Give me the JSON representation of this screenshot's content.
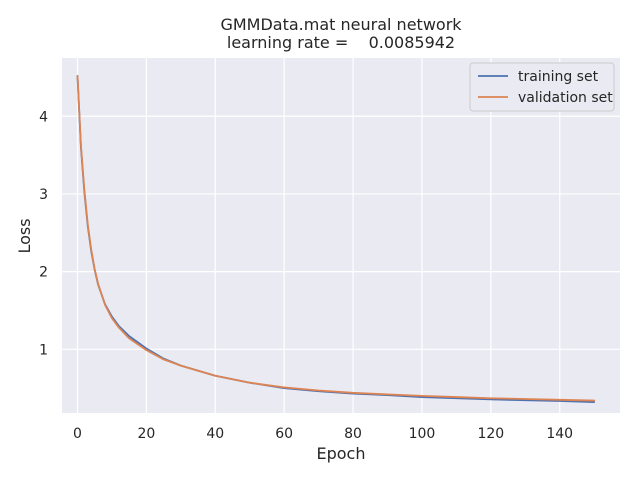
{
  "chart_data": {
    "type": "line",
    "title": "GMMData.mat neural network",
    "subtitle": "learning rate =    0.0085942",
    "xlabel": "Epoch",
    "ylabel": "Loss",
    "xlim": [
      -4.5,
      157.5
    ],
    "ylim": [
      0.18,
      4.75
    ],
    "xticks": [
      0,
      20,
      40,
      60,
      80,
      100,
      120,
      140
    ],
    "yticks": [
      1,
      2,
      3,
      4
    ],
    "grid": true,
    "legend": "top-right",
    "series": [
      {
        "name": "training set",
        "color": "#4c72b0",
        "x": [
          0,
          1,
          2,
          3,
          4,
          5,
          6,
          8,
          10,
          12,
          15,
          20,
          25,
          30,
          40,
          50,
          60,
          70,
          80,
          90,
          100,
          110,
          120,
          130,
          140,
          150
        ],
        "y": [
          4.52,
          3.6,
          3.02,
          2.58,
          2.26,
          2.02,
          1.83,
          1.58,
          1.42,
          1.3,
          1.17,
          1.01,
          0.88,
          0.79,
          0.66,
          0.57,
          0.5,
          0.46,
          0.43,
          0.41,
          0.385,
          0.37,
          0.355,
          0.345,
          0.335,
          0.32
        ]
      },
      {
        "name": "validation set",
        "color": "#dd8452",
        "x": [
          0,
          1,
          2,
          3,
          4,
          5,
          6,
          8,
          10,
          12,
          15,
          20,
          25,
          30,
          40,
          50,
          60,
          70,
          80,
          90,
          100,
          110,
          120,
          130,
          140,
          150
        ],
        "y": [
          4.52,
          3.62,
          3.05,
          2.6,
          2.28,
          2.03,
          1.84,
          1.57,
          1.4,
          1.28,
          1.14,
          0.99,
          0.87,
          0.79,
          0.66,
          0.57,
          0.51,
          0.47,
          0.44,
          0.42,
          0.4,
          0.385,
          0.37,
          0.36,
          0.35,
          0.34
        ]
      }
    ]
  }
}
